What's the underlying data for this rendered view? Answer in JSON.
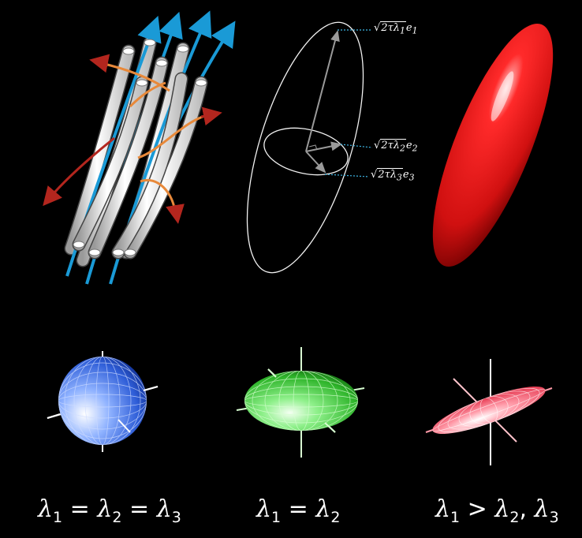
{
  "axis_labels": [
    {
      "radicand": "2τλ",
      "sub": "1",
      "vec": "e",
      "vecsub": "1"
    },
    {
      "radicand": "2τλ",
      "sub": "2",
      "vec": "e",
      "vecsub": "2"
    },
    {
      "radicand": "2τλ",
      "sub": "3",
      "vec": "e",
      "vecsub": "3"
    }
  ],
  "captions": [
    {
      "terms": [
        [
          "λ",
          "1"
        ],
        [
          "λ",
          "2"
        ],
        [
          "λ",
          "3"
        ]
      ],
      "ops": [
        "=",
        "="
      ],
      "extra": ""
    },
    {
      "terms": [
        [
          "λ",
          "1"
        ],
        [
          "λ",
          "2"
        ]
      ],
      "ops": [
        "="
      ],
      "extra": ""
    },
    {
      "terms": [
        [
          "λ",
          "1"
        ],
        [
          "λ",
          "2"
        ],
        [
          "λ",
          "3"
        ]
      ],
      "ops": [
        ">",
        ","
      ],
      "extra": ""
    }
  ],
  "colors": {
    "fiber": "#f2f2f2",
    "streamline_blue": "#1a9ad6",
    "arrow_orange": "#e8893a",
    "arrow_red": "#b3261e",
    "ellipsoid_red": "#e21c1c",
    "sphere_blue": "#3a6fe0",
    "disk_green": "#3ec23a",
    "cigar_pink": "#ff5a6e",
    "leader_line": "#3fb8e8"
  }
}
